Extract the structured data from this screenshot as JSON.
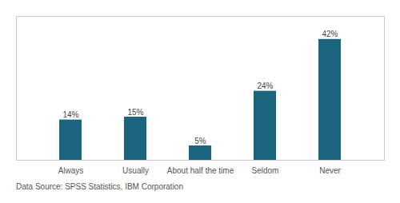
{
  "chart_data": {
    "type": "bar",
    "categories": [
      "Always",
      "Usually",
      "About half the time",
      "Seldom",
      "Never"
    ],
    "values": [
      14,
      15,
      5,
      24,
      42
    ],
    "value_labels": [
      "14%",
      "15%",
      "5%",
      "24%",
      "42%"
    ],
    "data_labels": true,
    "color": "#1a6480",
    "ylim": [
      0,
      50
    ],
    "tick_labels": "x",
    "grid": false,
    "annotations": [
      "Data Source: SPSS Statistics, IBM Corporation"
    ]
  }
}
